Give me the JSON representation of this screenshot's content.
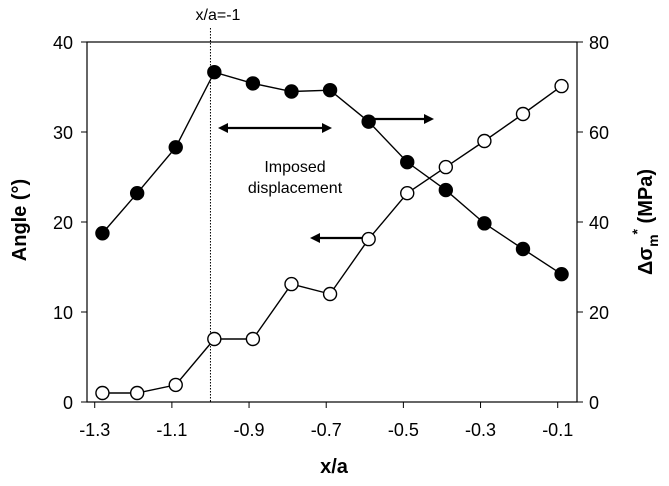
{
  "chart_data": {
    "type": "scatter",
    "title": "",
    "xlabel": "x/a",
    "ylabel_left": "Angle (°)",
    "ylabel_right_base": "Δσ",
    "ylabel_right_sub": "m",
    "ylabel_right_sup": "*",
    "ylabel_right_unit": " (MPa)",
    "xlim": [
      -1.32,
      -0.05
    ],
    "ylim_left": [
      0,
      40
    ],
    "ylim_right": [
      0,
      80
    ],
    "x_ticks": [
      -1.3,
      -1.1,
      -0.9,
      -0.7,
      -0.5,
      -0.3,
      -0.1
    ],
    "x_tick_labels": [
      "-1.3",
      "-1.1",
      "-0.9",
      "-0.7",
      "-0.5",
      "-0.3",
      "-0.1"
    ],
    "y_left_ticks": [
      0,
      10,
      20,
      30,
      40
    ],
    "y_left_tick_labels": [
      "0",
      "10",
      "20",
      "30",
      "40"
    ],
    "y_right_ticks": [
      0,
      20,
      40,
      60,
      80
    ],
    "y_right_tick_labels": [
      "0",
      "20",
      "40",
      "60",
      "80"
    ],
    "grid": false,
    "series": [
      {
        "marker": "filled-circle",
        "axis": "right",
        "x": [
          -1.28,
          -1.19,
          -1.09,
          -0.99,
          -0.89,
          -0.79,
          -0.69,
          -0.59,
          -0.49,
          -0.39,
          -0.29,
          -0.19,
          -0.09
        ],
        "values": [
          37.5,
          46.4,
          56.6,
          73.3,
          70.8,
          69.0,
          69.3,
          62.3,
          53.3,
          47.1,
          39.7,
          34.0,
          28.4
        ]
      },
      {
        "marker": "open-circle",
        "axis": "left",
        "x": [
          -1.28,
          -1.19,
          -1.09,
          -0.99,
          -0.89,
          -0.79,
          -0.69,
          -0.59,
          -0.49,
          -0.39,
          -0.29,
          -0.19,
          -0.09
        ],
        "values": [
          1.0,
          1.0,
          1.9,
          7.0,
          7.0,
          13.1,
          12.0,
          18.1,
          23.2,
          26.1,
          29.0,
          32.0,
          35.1
        ]
      }
    ],
    "vline": {
      "x": -1.0,
      "label": "x/a=-1"
    },
    "annotations": {
      "imposed_line1": "Imposed",
      "imposed_line2": "displacement"
    }
  }
}
